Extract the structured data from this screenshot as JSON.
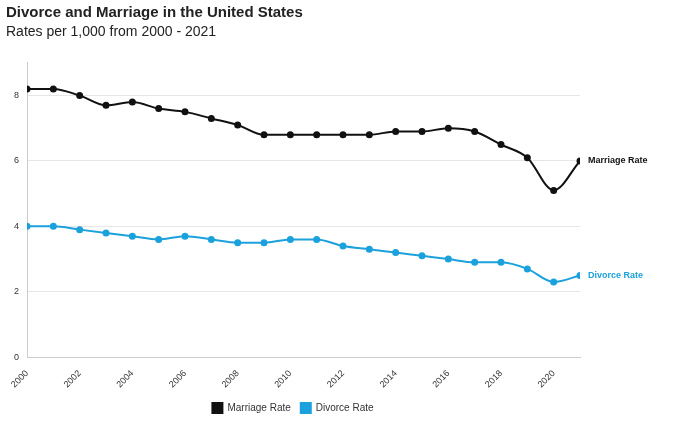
{
  "chart_data": {
    "type": "line",
    "title": "Divorce and Marriage in the United States",
    "subtitle": "Rates per 1,000 from 2000 - 2021",
    "categories": [
      "2000",
      null,
      "2002",
      null,
      "2004",
      null,
      "2006",
      null,
      "2008",
      null,
      "2010",
      null,
      "2012",
      null,
      "2014",
      null,
      "2016",
      null,
      "2018",
      null,
      "2020",
      null
    ],
    "series": [
      {
        "name": "Marriage Rate",
        "color": "#111111",
        "marker": "circle",
        "line_style": "solid",
        "values": [
          8.2,
          8.2,
          8.0,
          7.7,
          7.8,
          7.6,
          7.5,
          7.3,
          7.1,
          6.8,
          6.8,
          6.8,
          6.8,
          6.8,
          6.9,
          6.9,
          7.0,
          6.9,
          6.5,
          6.1,
          5.1,
          6.0
        ]
      },
      {
        "name": "Divorce Rate",
        "color": "#1ba1dc",
        "marker": "circle",
        "line_style": "solid",
        "values": [
          4.0,
          4.0,
          3.9,
          3.8,
          3.7,
          3.6,
          3.7,
          3.6,
          3.5,
          3.5,
          3.6,
          3.6,
          3.4,
          3.3,
          3.2,
          3.1,
          3.0,
          2.9,
          2.9,
          2.7,
          2.3,
          2.5
        ]
      }
    ],
    "ylim": [
      0,
      9
    ],
    "yticks": [
      0,
      2,
      4,
      6,
      8
    ],
    "grid": true,
    "legend": "bottom"
  }
}
